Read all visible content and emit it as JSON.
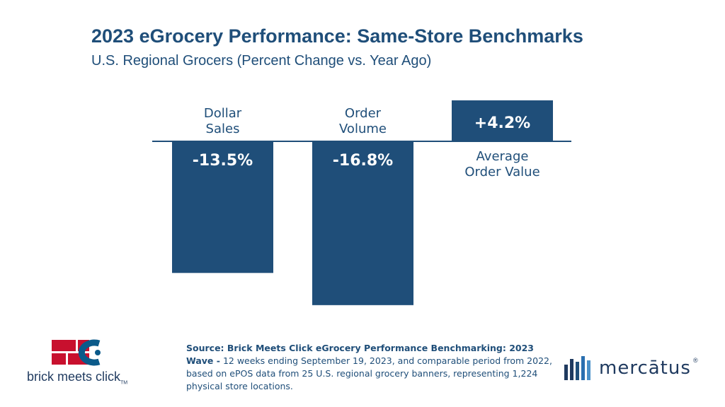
{
  "header": {
    "title": "2023 eGrocery Performance: Same-Store Benchmarks",
    "subtitle": "U.S. Regional Grocers (Percent Change vs. Year Ago)"
  },
  "chart_data": {
    "type": "bar",
    "categories": [
      [
        "Dollar",
        "Sales"
      ],
      [
        "Order",
        "Volume"
      ],
      [
        "Average",
        "Order Value"
      ]
    ],
    "values": [
      -13.5,
      -16.8,
      4.2
    ],
    "value_labels": [
      "-13.5%",
      "-16.8%",
      "+4.2%"
    ],
    "ylim": [
      -16.8,
      4.2
    ],
    "grid": false,
    "legend": "none",
    "colors": {
      "bar": "#1f4e79",
      "label_text": "#ffffff",
      "category_text": "#1f4e79"
    }
  },
  "source": {
    "lead": "Source: Brick Meets Click eGrocery Performance Benchmarking: 2023 Wave -",
    "body": "12 weeks ending September 19, 2023, and comparable period from 2022, based on ePOS data from 25 U.S. regional grocery banners, representing 1,224 physical store locations."
  },
  "logos": {
    "left": {
      "name": "brick meets click",
      "tm": "TM"
    },
    "right": {
      "name": "mercātus",
      "reg": "®"
    }
  },
  "colors": {
    "brand_blue": "#1f4e79",
    "brick_red": "#c8102e",
    "logo_blue": "#0b5a8a"
  }
}
